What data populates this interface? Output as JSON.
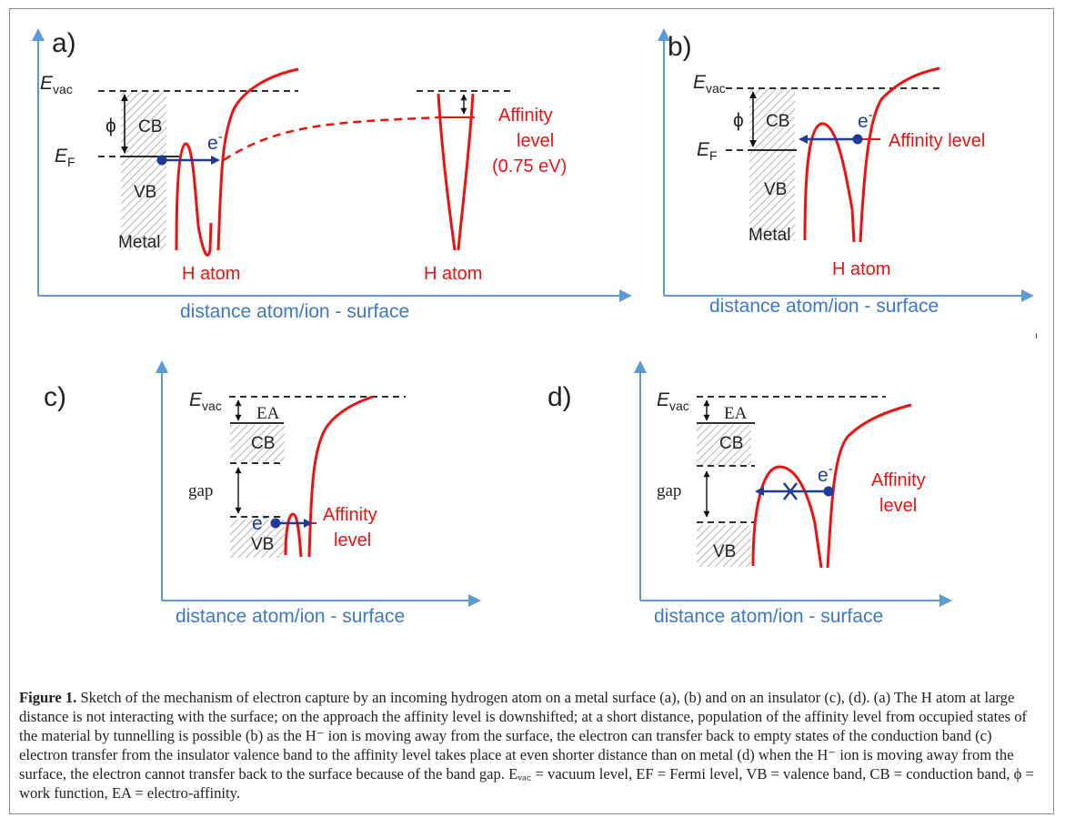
{
  "panels": {
    "a": {
      "label": "a)",
      "evac_main": "E",
      "evac_sub": "vac",
      "ef_main": "E",
      "ef_sub": "F",
      "phi": "ϕ",
      "cb": "CB",
      "vb": "VB",
      "metal": "Metal",
      "electron": "e",
      "electron_sup": "-",
      "h_atom_near": "H atom",
      "h_atom_far": "H atom",
      "affinity_line1": "Affinity",
      "affinity_line2": "level",
      "affinity_line3": "(0.75 eV)",
      "axis_label": "distance atom/ion - surface"
    },
    "b": {
      "label": "b)",
      "evac_main": "E",
      "evac_sub": "vac",
      "ef_main": "E",
      "ef_sub": "F",
      "phi": "ϕ",
      "cb": "CB",
      "vb": "VB",
      "metal": "Metal",
      "electron": "e",
      "electron_sup": "-",
      "affinity": "Affinity level",
      "h_atom": "H atom",
      "axis_label": "distance atom/ion - surface"
    },
    "c": {
      "label": "c)",
      "evac_main": "E",
      "evac_sub": "vac",
      "ea": "EA",
      "cb": "CB",
      "gap": "gap",
      "vb": "VB",
      "electron": "e",
      "electron_sup": "-",
      "affinity_line1": "Affinity",
      "affinity_line2": "level",
      "axis_label": "distance atom/ion - surface"
    },
    "d": {
      "label": "d)",
      "evac_main": "E",
      "evac_sub": "vac",
      "ea": "EA",
      "cb": "CB",
      "gap": "gap",
      "vb": "VB",
      "electron": "e",
      "electron_sup": "-",
      "affinity_line1": "Affinity",
      "affinity_line2": "level",
      "axis_label": "distance atom/ion - surface"
    }
  },
  "caption": {
    "label": "Figure 1.",
    "text": " Sketch of the mechanism of electron capture by an incoming hydrogen atom on a metal surface (a), (b) and on an insulator (c), (d). (a) The H atom at large distance is not interacting with the surface; on the approach the affinity level is downshifted; at a short distance, population of the affinity level from occupied states of the material by tunnelling is possible (b) as the H⁻ ion is moving away from the surface, the electron can transfer back to empty states of the conduction band (c) electron transfer from the insulator valence band to the affinity level takes place at even shorter distance than on metal (d) when the H⁻ ion is moving away from the surface, the electron cannot transfer back to the surface because of the band gap. Eᵥₐ꜀ = vacuum level, EF = Fermi level, VB = valence band, CB = conduction band, ϕ = work function, EA = electro-affinity."
  },
  "colors": {
    "red": "#ee1111",
    "blue_axis": "#5b9bd5",
    "navy": "#1f3b9a",
    "hatch": "#b0b0b0"
  }
}
